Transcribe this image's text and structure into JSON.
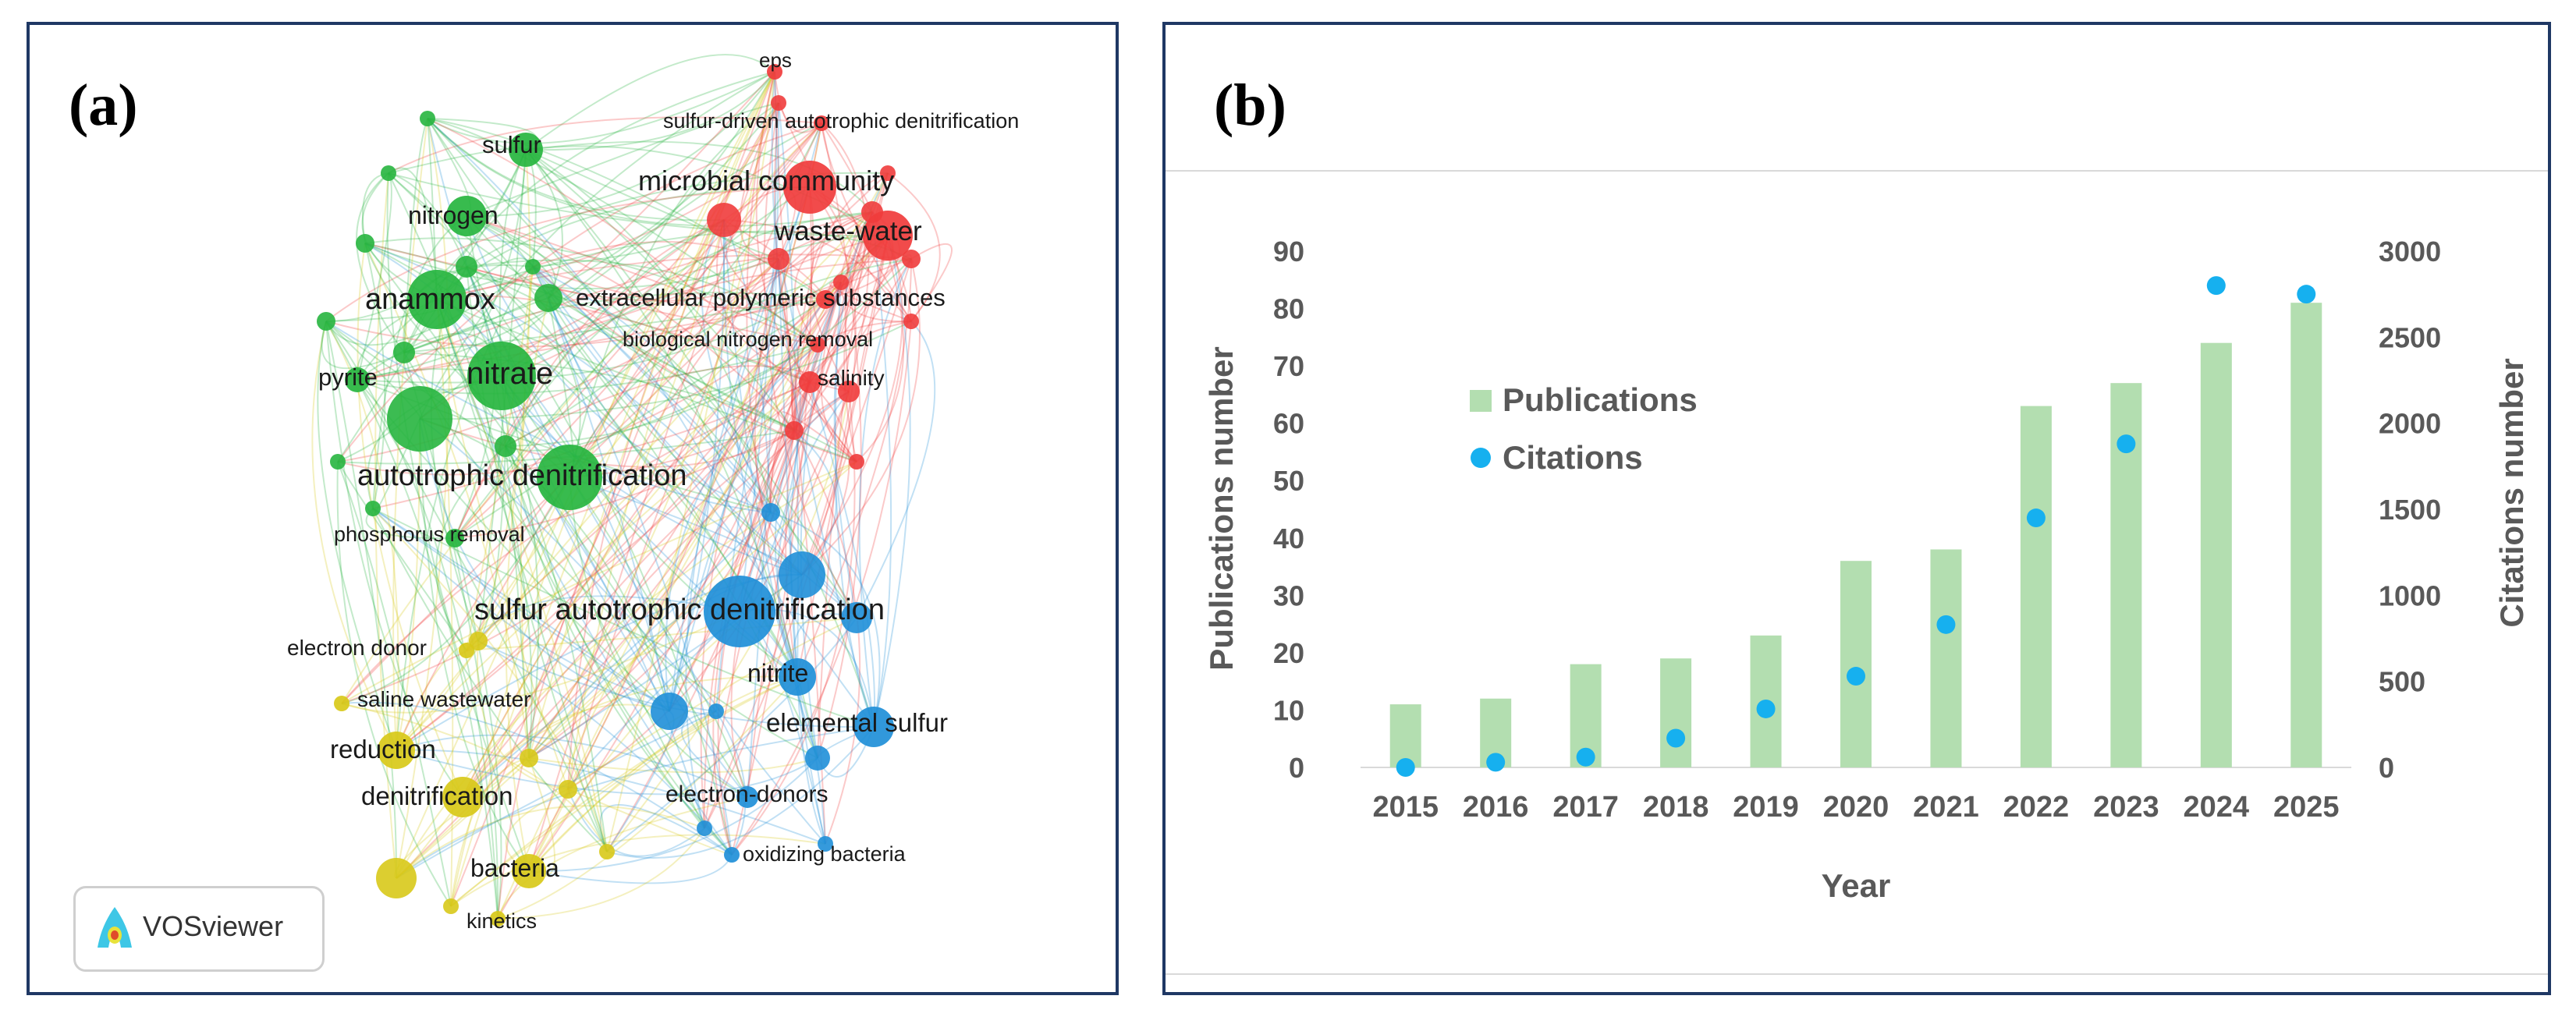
{
  "panel_a": {
    "label": "(a)",
    "badge": "VOSviewer",
    "colors": {
      "red": "#f03c3c",
      "green": "#27b53f",
      "blue": "#1f8fd8",
      "yellow": "#d8c919"
    },
    "chart_data": {
      "type": "network",
      "nodes": [
        {
          "label": "eps",
          "cluster": "red",
          "weight": 1
        },
        {
          "label": "sulfur-driven autotrophic denitrification",
          "cluster": "red",
          "weight": 1
        },
        {
          "label": "microbial community",
          "cluster": "red",
          "weight": 4
        },
        {
          "label": "waste-water",
          "cluster": "red",
          "weight": 4
        },
        {
          "label": "extracellular polymeric substances",
          "cluster": "red",
          "weight": 2
        },
        {
          "label": "biological nitrogen removal",
          "cluster": "red",
          "weight": 1
        },
        {
          "label": "salinity",
          "cluster": "red",
          "weight": 1
        },
        {
          "label": "sulfur",
          "cluster": "green",
          "weight": 2
        },
        {
          "label": "nitrogen",
          "cluster": "green",
          "weight": 2
        },
        {
          "label": "anammox",
          "cluster": "green",
          "weight": 4
        },
        {
          "label": "pyrite",
          "cluster": "green",
          "weight": 2
        },
        {
          "label": "nitrate",
          "cluster": "green",
          "weight": 5
        },
        {
          "label": "autotrophic denitrification",
          "cluster": "green",
          "weight": 5
        },
        {
          "label": "phosphorus removal",
          "cluster": "green",
          "weight": 1
        },
        {
          "label": "sulfur autotrophic denitrification",
          "cluster": "blue",
          "weight": 5
        },
        {
          "label": "nitrite",
          "cluster": "blue",
          "weight": 2
        },
        {
          "label": "elemental sulfur",
          "cluster": "blue",
          "weight": 3
        },
        {
          "label": "electron-donors",
          "cluster": "blue",
          "weight": 1
        },
        {
          "label": "oxidizing bacteria",
          "cluster": "blue",
          "weight": 1
        },
        {
          "label": "electron donor",
          "cluster": "yellow",
          "weight": 1
        },
        {
          "label": "saline wastewater",
          "cluster": "yellow",
          "weight": 1
        },
        {
          "label": "reduction",
          "cluster": "yellow",
          "weight": 3
        },
        {
          "label": "denitrification",
          "cluster": "yellow",
          "weight": 3
        },
        {
          "label": "bacteria",
          "cluster": "yellow",
          "weight": 2
        },
        {
          "label": "kinetics",
          "cluster": "yellow",
          "weight": 1
        }
      ]
    }
  },
  "panel_b": {
    "label": "(b)",
    "colors": {
      "bar": "#b3deb0",
      "dot": "#16b0ef",
      "axis": "#595959"
    },
    "chart_data": {
      "type": "bar",
      "categories": [
        "2015",
        "2016",
        "2017",
        "2018",
        "2019",
        "2020",
        "2021",
        "2022",
        "2023",
        "2024",
        "2025"
      ],
      "series": [
        {
          "name": "Publications",
          "axis": "left",
          "values": [
            11,
            12,
            18,
            19,
            23,
            36,
            38,
            63,
            67,
            74,
            81
          ]
        },
        {
          "name": "Citations",
          "axis": "right",
          "type": "scatter",
          "values": [
            0,
            30,
            60,
            170,
            340,
            530,
            830,
            1450,
            1880,
            2800,
            2750
          ]
        }
      ],
      "xlabel": "Year",
      "ylabel": "Publications  number",
      "y2label": "Citations number",
      "ylim": [
        0,
        90
      ],
      "y2lim": [
        0,
        3000
      ],
      "yticks": [
        "0",
        "10",
        "20",
        "30",
        "40",
        "50",
        "60",
        "70",
        "80",
        "90"
      ],
      "y2ticks": [
        "0",
        "500",
        "1000",
        "1500",
        "2000",
        "2500",
        "3000"
      ]
    }
  }
}
